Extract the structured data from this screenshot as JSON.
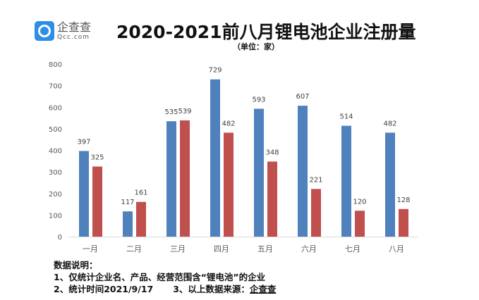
{
  "logo": {
    "cn": "企查查",
    "en": "Qcc.com"
  },
  "chart_data": {
    "type": "bar",
    "title": "2020-2021前八月锂电池企业注册量",
    "subtitle": "（单位：家）",
    "categories": [
      "一月",
      "二月",
      "三月",
      "四月",
      "五月",
      "六月",
      "七月",
      "八月"
    ],
    "series": [
      {
        "color": "#4f81bd",
        "values": [
          397,
          117,
          535,
          729,
          593,
          607,
          514,
          482
        ]
      },
      {
        "color": "#c0504d",
        "values": [
          325,
          161,
          539,
          482,
          348,
          221,
          120,
          128
        ]
      }
    ],
    "ylim": [
      0,
      800
    ],
    "yticks": [
      0,
      100,
      200,
      300,
      400,
      500,
      600,
      700,
      800
    ],
    "grid": false,
    "legend": "none"
  },
  "notes": {
    "heading": "数据说明：",
    "line1": "1、仅统计企业名、产品、经营范围含“锂电池”的企业",
    "line2": "2、统计时间2021/9/17",
    "line3_prefix": "3、以上数据来源：",
    "line3_source": "企查查"
  }
}
